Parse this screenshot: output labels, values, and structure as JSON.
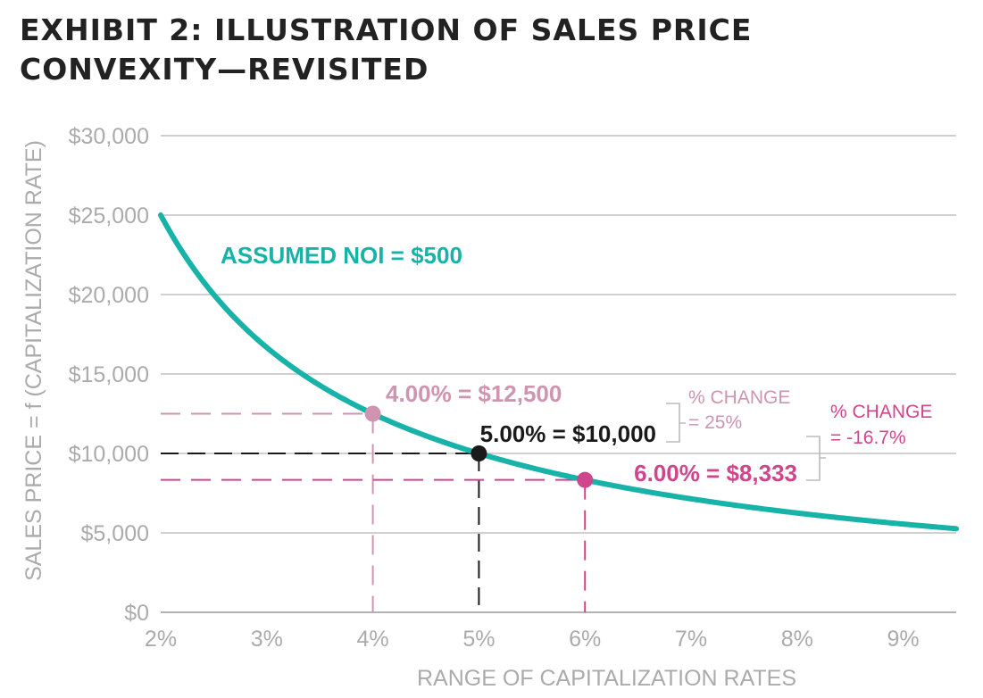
{
  "title": {
    "line1": "EXHIBIT 2: ILLUSTRATION OF SALES PRICE",
    "line2": "CONVEXITY—REVISITED"
  },
  "colors": {
    "curve": "#17b2a8",
    "grid": "#b5b5b5",
    "axis_text": "#ababab",
    "low_point": "#cf94b0",
    "mid_point": "#1a1a1a",
    "high_point": "#d0468c"
  },
  "chart_data": {
    "type": "line",
    "xlabel": "RANGE OF CAPITALIZATION RATES",
    "ylabel": "SALES PRICE = f (CAPITALIZATION RATE)",
    "xlim": [
      2,
      9.5
    ],
    "ylim": [
      0,
      30000
    ],
    "x_ticks": [
      "2%",
      "3%",
      "4%",
      "5%",
      "6%",
      "7%",
      "8%",
      "9%"
    ],
    "y_ticks": [
      "$0",
      "$5,000",
      "$10,000",
      "$15,000",
      "$20,000",
      "$25,000",
      "$30,000"
    ],
    "grid": true,
    "series": [
      {
        "name": "ASSUMED NOI = $500",
        "function": "price = NOI / cap_rate",
        "noi": 500,
        "x": [
          2,
          2.5,
          3,
          3.5,
          4,
          4.5,
          5,
          5.5,
          6,
          6.5,
          7,
          7.5,
          8,
          8.5,
          9,
          9.5
        ],
        "y": [
          25000,
          20000,
          16667,
          14286,
          12500,
          11111,
          10000,
          9091,
          8333,
          7692,
          7143,
          6667,
          6250,
          5882,
          5556,
          5263
        ]
      }
    ],
    "highlighted_points": [
      {
        "x": 4,
        "y": 12500,
        "label": "4.00% = $12,500"
      },
      {
        "x": 5,
        "y": 10000,
        "label": "5.00% = $10,000"
      },
      {
        "x": 6,
        "y": 8333,
        "label": "6.00% = $8,333"
      }
    ],
    "annotations": [
      {
        "line1": "% CHANGE",
        "line2": "= 25%"
      },
      {
        "line1": "% CHANGE",
        "line2": "= -16.7%"
      }
    ]
  }
}
